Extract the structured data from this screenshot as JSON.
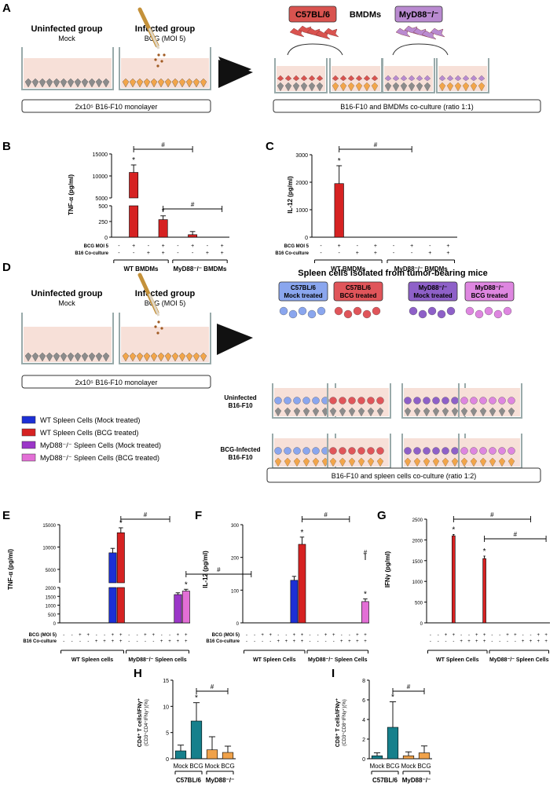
{
  "panels": {
    "A": "A",
    "B": "B",
    "C": "C",
    "D": "D",
    "E": "E",
    "F": "F",
    "G": "G",
    "H": "H",
    "I": "I"
  },
  "schematic_a": {
    "uninfected_title": "Uninfected group",
    "uninfected_sub": "Mock",
    "infected_title": "Infected group",
    "infected_sub": "BCG (MOI 5)",
    "monolayer_label": "2x10⁵ B16-F10 monolayer",
    "c57_label": "C57BL/6",
    "bmdm_label": "BMDMs",
    "myd88_label": "MyD88⁻/⁻",
    "coculture_label": "B16-F10 and BMDMs co-culture (ratio 1:1)"
  },
  "schematic_d": {
    "uninfected_title": "Uninfected group",
    "uninfected_sub": "Mock",
    "infected_title": "Infected group",
    "infected_sub": "BCG (MOI 5)",
    "monolayer_label": "2x10⁵ B16-F10 monolayer",
    "spleen_title": "Spleen cells isolated from tumor-bearing mice",
    "boxes": [
      {
        "line1": "C57BL/6",
        "line2": "Mock treated"
      },
      {
        "line1": "C57BL/6",
        "line2": "BCG treated"
      },
      {
        "line1": "MyD88⁻/⁻",
        "line2": "Mock treated"
      },
      {
        "line1": "MyD88⁻/⁻",
        "line2": "BCG treated"
      }
    ],
    "row1_line1": "Uninfected",
    "row1_line2": "B16-F10",
    "row2_line1": "BCG-Infected",
    "row2_line2": "B16-F10",
    "coculture_label": "B16-F10 and spleen cells co-culture (ratio 1:2)",
    "legend": [
      {
        "label": "WT Spleen Cells (Mock treated)",
        "color": "#1c2fd6"
      },
      {
        "label": "WT Spleen Cells (BCG treated)",
        "color": "#d62222"
      },
      {
        "label": "MyD88⁻/⁻ Spleen Cells (Mock treated)",
        "color": "#9b36c8"
      },
      {
        "label": "MyD88⁻/⁻ Spleen Cells (BCG treated)",
        "color": "#e36fd6"
      }
    ]
  },
  "colors": {
    "blue": "#1c2fd6",
    "red": "#d62222",
    "teal": "#16808c",
    "orange": "#f0a24a",
    "c57_box": "#d9534f",
    "myd_box": "#b98ad0",
    "spleen_c57_mock": "#8aa6ee",
    "spleen_c57_bcg": "#e0555a",
    "spleen_myd_mock": "#8e60c8",
    "spleen_myd_bcg": "#de86e0"
  },
  "chart_data": [
    {
      "panel": "B",
      "type": "bar",
      "ylabel": "TNF-α (pg/ml)",
      "ylim_lower": [
        0,
        500
      ],
      "ylim_upper": [
        5000,
        15000
      ],
      "yticks_lower": [
        "0",
        "250",
        "500"
      ],
      "yticks_upper": [
        "5000",
        "10000",
        "15000"
      ],
      "row1_label": "BCG MOI 5",
      "row1_marks": [
        "-",
        "+",
        "-",
        "+",
        "-",
        "+",
        "-",
        "+"
      ],
      "row2_label": "B16 Co-culture",
      "row2_marks": [
        "-",
        "-",
        "+",
        "+",
        "-",
        "-",
        "+",
        "+"
      ],
      "groups": [
        "WT BMDMs",
        "MyD88⁻/⁻ BMDMs"
      ],
      "values": [
        0,
        10800,
        0,
        280,
        0,
        40,
        0,
        0
      ],
      "errors": [
        0,
        1700,
        0,
        60,
        0,
        50,
        0,
        0
      ],
      "stars": [
        "",
        "*",
        "",
        "*",
        "",
        "",
        "",
        ""
      ],
      "hash": "#"
    },
    {
      "panel": "C",
      "type": "bar",
      "ylabel": "IL-12 (pg/ml)",
      "ylim": [
        0,
        3000
      ],
      "yticks": [
        "0",
        "1000",
        "2000",
        "3000"
      ],
      "row1_label": "BCG MOI 5",
      "row1_marks": [
        "-",
        "+",
        "-",
        "+",
        "-",
        "+",
        "-",
        "+"
      ],
      "row2_label": "B16 Co-culture",
      "row2_marks": [
        "-",
        "-",
        "+",
        "+",
        "-",
        "-",
        "+",
        "+"
      ],
      "groups": [
        "WT BMDMs",
        "MyD88⁻/⁻ BMDMs"
      ],
      "values": [
        0,
        1950,
        0,
        0,
        0,
        0,
        0,
        0
      ],
      "errors": [
        0,
        650,
        0,
        0,
        0,
        0,
        0,
        0
      ],
      "stars": [
        "",
        "*",
        "",
        "",
        "",
        "",
        "",
        ""
      ],
      "hash": "#"
    },
    {
      "panel": "E",
      "type": "bar",
      "ylabel": "TNF-α (pg/ml)",
      "ylim_lower": [
        0,
        2000
      ],
      "ylim_upper": [
        2000,
        15000
      ],
      "yticks_lower": [
        "0",
        "500",
        "1000",
        "1500",
        "2000"
      ],
      "yticks_upper": [
        "5000",
        "10000",
        "15000"
      ],
      "row1_label": "BCG (MOI 5)",
      "row1_marks": [
        "-",
        "-",
        "+",
        "+",
        "-",
        "-",
        "+",
        "+",
        "-",
        "-",
        "+",
        "+",
        "-",
        "-",
        "+",
        "+"
      ],
      "row2_label": "B16 Co-culture",
      "row2_marks": [
        "-",
        "-",
        "-",
        "-",
        "+",
        "+",
        "+",
        "+",
        "-",
        "-",
        "-",
        "-",
        "+",
        "+",
        "+",
        "+"
      ],
      "groups": [
        "WT Spleen cells",
        "MyD88⁻/⁻ Spleen cells"
      ],
      "values": [
        0,
        0,
        0,
        0,
        0,
        0,
        8700,
        13200,
        0,
        0,
        0,
        0,
        0,
        0,
        1600,
        1800
      ],
      "errors": [
        0,
        0,
        0,
        0,
        0,
        0,
        1000,
        1100,
        0,
        0,
        0,
        0,
        0,
        0,
        100,
        100
      ],
      "stars": [
        "",
        "",
        "",
        "",
        "",
        "",
        "",
        "*",
        "",
        "",
        "",
        "",
        "",
        "",
        "",
        "*"
      ],
      "hash": "#"
    },
    {
      "panel": "F",
      "type": "bar",
      "ylabel": "IL-12 (pg/ml)",
      "ylim": [
        0,
        300
      ],
      "yticks": [
        "0",
        "100",
        "200",
        "300"
      ],
      "row1_label": "BCG (MOI 5)",
      "row1_marks": [
        "-",
        "-",
        "+",
        "+",
        "-",
        "-",
        "+",
        "+",
        "-",
        "-",
        "+",
        "+",
        "-",
        "-",
        "+",
        "+"
      ],
      "row2_label": "B16 Co-culture",
      "row2_marks": [
        "-",
        "-",
        "-",
        "-",
        "+",
        "+",
        "+",
        "+",
        "-",
        "-",
        "-",
        "-",
        "+",
        "+",
        "+",
        "+"
      ],
      "groups": [
        "WT Spleen Cells",
        "MyD88⁻/⁻ Spleen Cells"
      ],
      "values": [
        0,
        0,
        0,
        0,
        0,
        0,
        130,
        240,
        0,
        0,
        0,
        0,
        0,
        0,
        0,
        65
      ],
      "errors": [
        0,
        0,
        0,
        0,
        0,
        0,
        12,
        22,
        0,
        0,
        0,
        0,
        0,
        0,
        0,
        8
      ],
      "stars": [
        "",
        "",
        "",
        "",
        "",
        "",
        "",
        "*",
        "",
        "",
        "",
        "",
        "",
        "",
        "",
        "*"
      ],
      "hash": "#"
    },
    {
      "panel": "G",
      "type": "bar",
      "ylabel": "IFNγ (pg/ml)",
      "ylim": [
        0,
        2500
      ],
      "yticks": [
        "0",
        "500",
        "1000",
        "1500",
        "2000",
        "2500"
      ],
      "row1_label": "",
      "row1_marks": [
        "-",
        "-",
        "+",
        "+",
        "-",
        "-",
        "+",
        "+",
        "-",
        "-",
        "+",
        "+",
        "-",
        "-",
        "+",
        "+"
      ],
      "row2_label": "",
      "row2_marks": [
        "-",
        "-",
        "-",
        "-",
        "+",
        "+",
        "+",
        "+",
        "-",
        "-",
        "-",
        "-",
        "+",
        "+",
        "+",
        "+"
      ],
      "groups": [
        "WT Spleen Cells",
        "MyD88⁻/⁻ Spleen Cells"
      ],
      "values": [
        0,
        0,
        0,
        2100,
        0,
        0,
        0,
        1550,
        0,
        0,
        0,
        0,
        0,
        0,
        0,
        0
      ],
      "errors": [
        0,
        0,
        0,
        30,
        0,
        0,
        0,
        60,
        0,
        0,
        0,
        0,
        0,
        0,
        0,
        0
      ],
      "stars": [
        "",
        "",
        "",
        "*",
        "",
        "",
        "",
        "*",
        "",
        "",
        "",
        "",
        "",
        "",
        "",
        ""
      ],
      "hash": "#"
    },
    {
      "panel": "H",
      "type": "bar",
      "ylabel": "CD4⁺ T cells/IFNγ⁺",
      "ylabel_sub": "(CD3⁺CD4⁺IFNγ⁺)(%)",
      "ylim": [
        0,
        15
      ],
      "yticks": [
        "0",
        "5",
        "10",
        "15"
      ],
      "categories": [
        "Mock",
        "BCG",
        "Mock",
        "BCG"
      ],
      "groups": [
        "C57BL/6",
        "MyD88⁻/⁻"
      ],
      "values": [
        1.5,
        7.2,
        1.7,
        1.2
      ],
      "errors": [
        1.1,
        3.5,
        2.5,
        1.2
      ],
      "stars": [
        "",
        "*",
        "",
        ""
      ],
      "hash": "#"
    },
    {
      "panel": "I",
      "type": "bar",
      "ylabel": "CD8⁺ T cells/IFNγ⁺",
      "ylabel_sub": "(CD3⁺CD8⁺IFNγ⁺)(%)",
      "ylim": [
        0,
        8
      ],
      "yticks": [
        "0",
        "2",
        "4",
        "6",
        "8"
      ],
      "categories": [
        "Mock",
        "BCG",
        "Mock",
        "BCG"
      ],
      "groups": [
        "C57BL/6",
        "MyD88⁻/⁻"
      ],
      "values": [
        0.3,
        3.2,
        0.3,
        0.6
      ],
      "errors": [
        0.3,
        2.6,
        0.4,
        0.7
      ],
      "stars": [
        "",
        "*",
        "",
        ""
      ],
      "hash": "#"
    }
  ]
}
